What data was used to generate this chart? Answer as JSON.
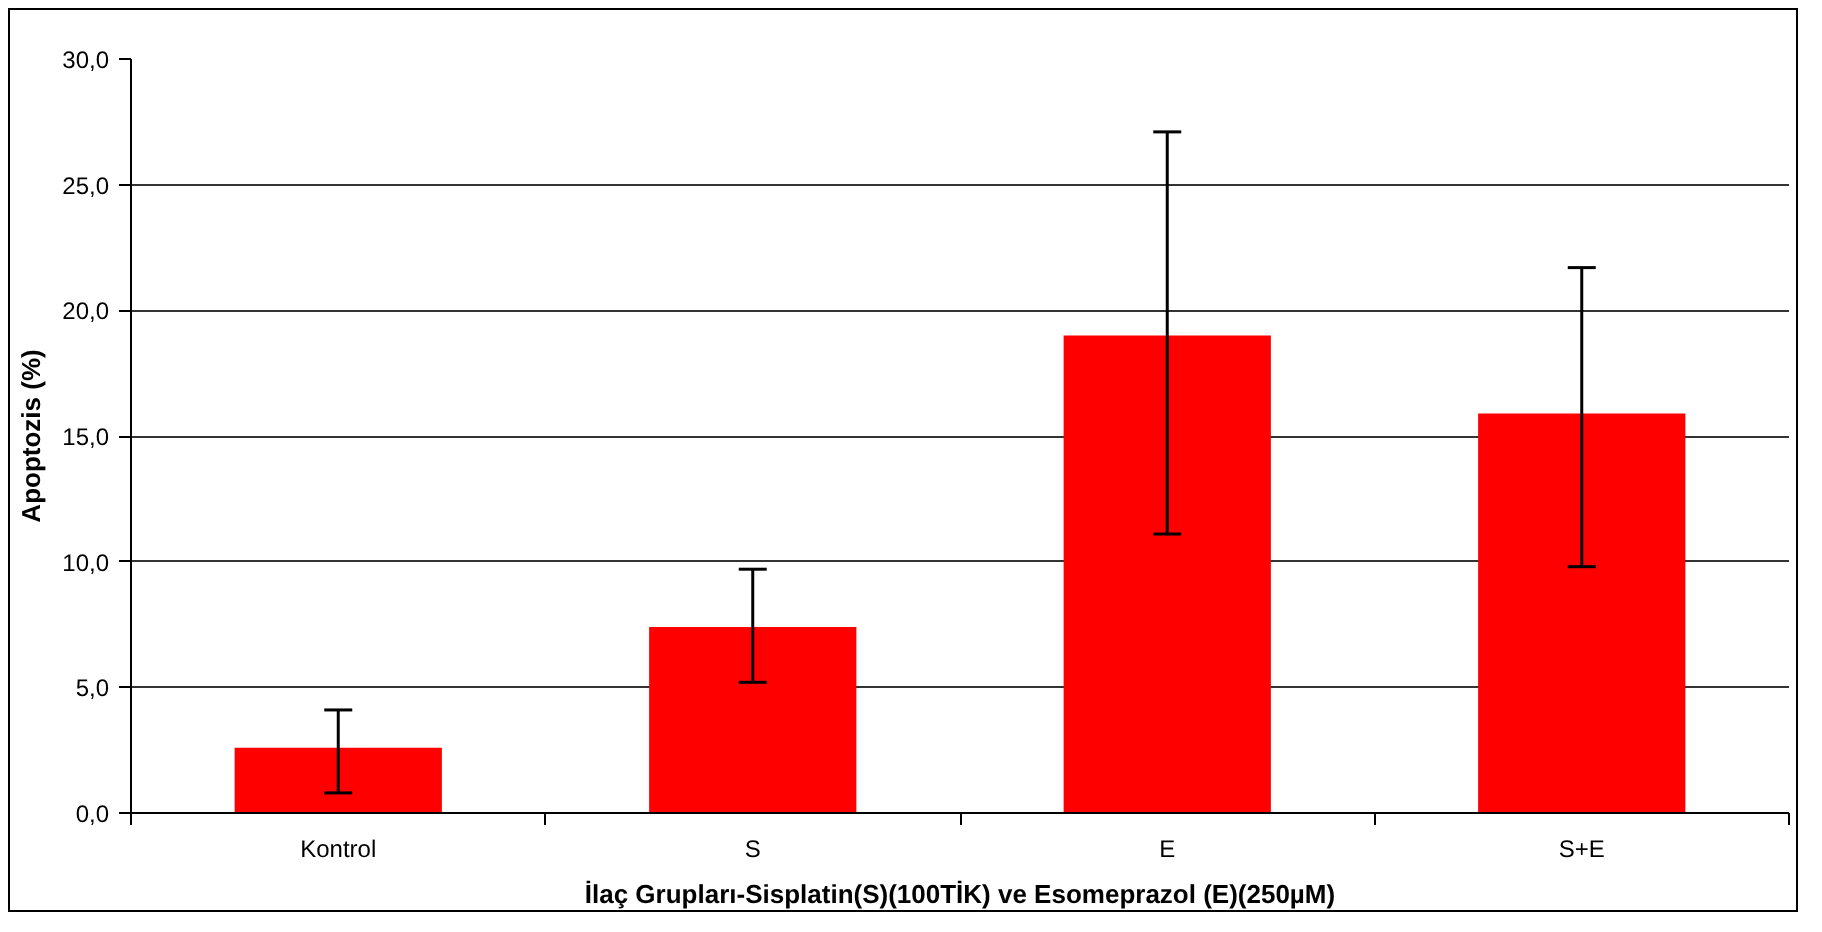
{
  "chart_data": {
    "type": "bar",
    "xlabel": "İlaç Grupları-Sisplatin(S)(100TİK) ve Esomeprazol (E)(250µM)",
    "ylabel": "Apoptozis (%)",
    "categories": [
      "Kontrol",
      "S",
      "E",
      "S+E"
    ],
    "values": [
      2.6,
      7.4,
      19.0,
      15.9
    ],
    "errors": [
      [
        0.8,
        4.1
      ],
      [
        5.2,
        9.7
      ],
      [
        11.1,
        27.1
      ],
      [
        9.8,
        21.7
      ]
    ],
    "color": "#ff0000",
    "ylim": [
      0,
      30
    ],
    "yticks": [
      {
        "value": 0,
        "label": "0,0"
      },
      {
        "value": 5,
        "label": "5,0"
      },
      {
        "value": 10,
        "label": "10,0"
      },
      {
        "value": 15,
        "label": "15,0"
      },
      {
        "value": 20,
        "label": "20,0"
      },
      {
        "value": 25,
        "label": "25,0"
      },
      {
        "value": 30,
        "label": "30,0"
      }
    ],
    "grid": "y"
  }
}
